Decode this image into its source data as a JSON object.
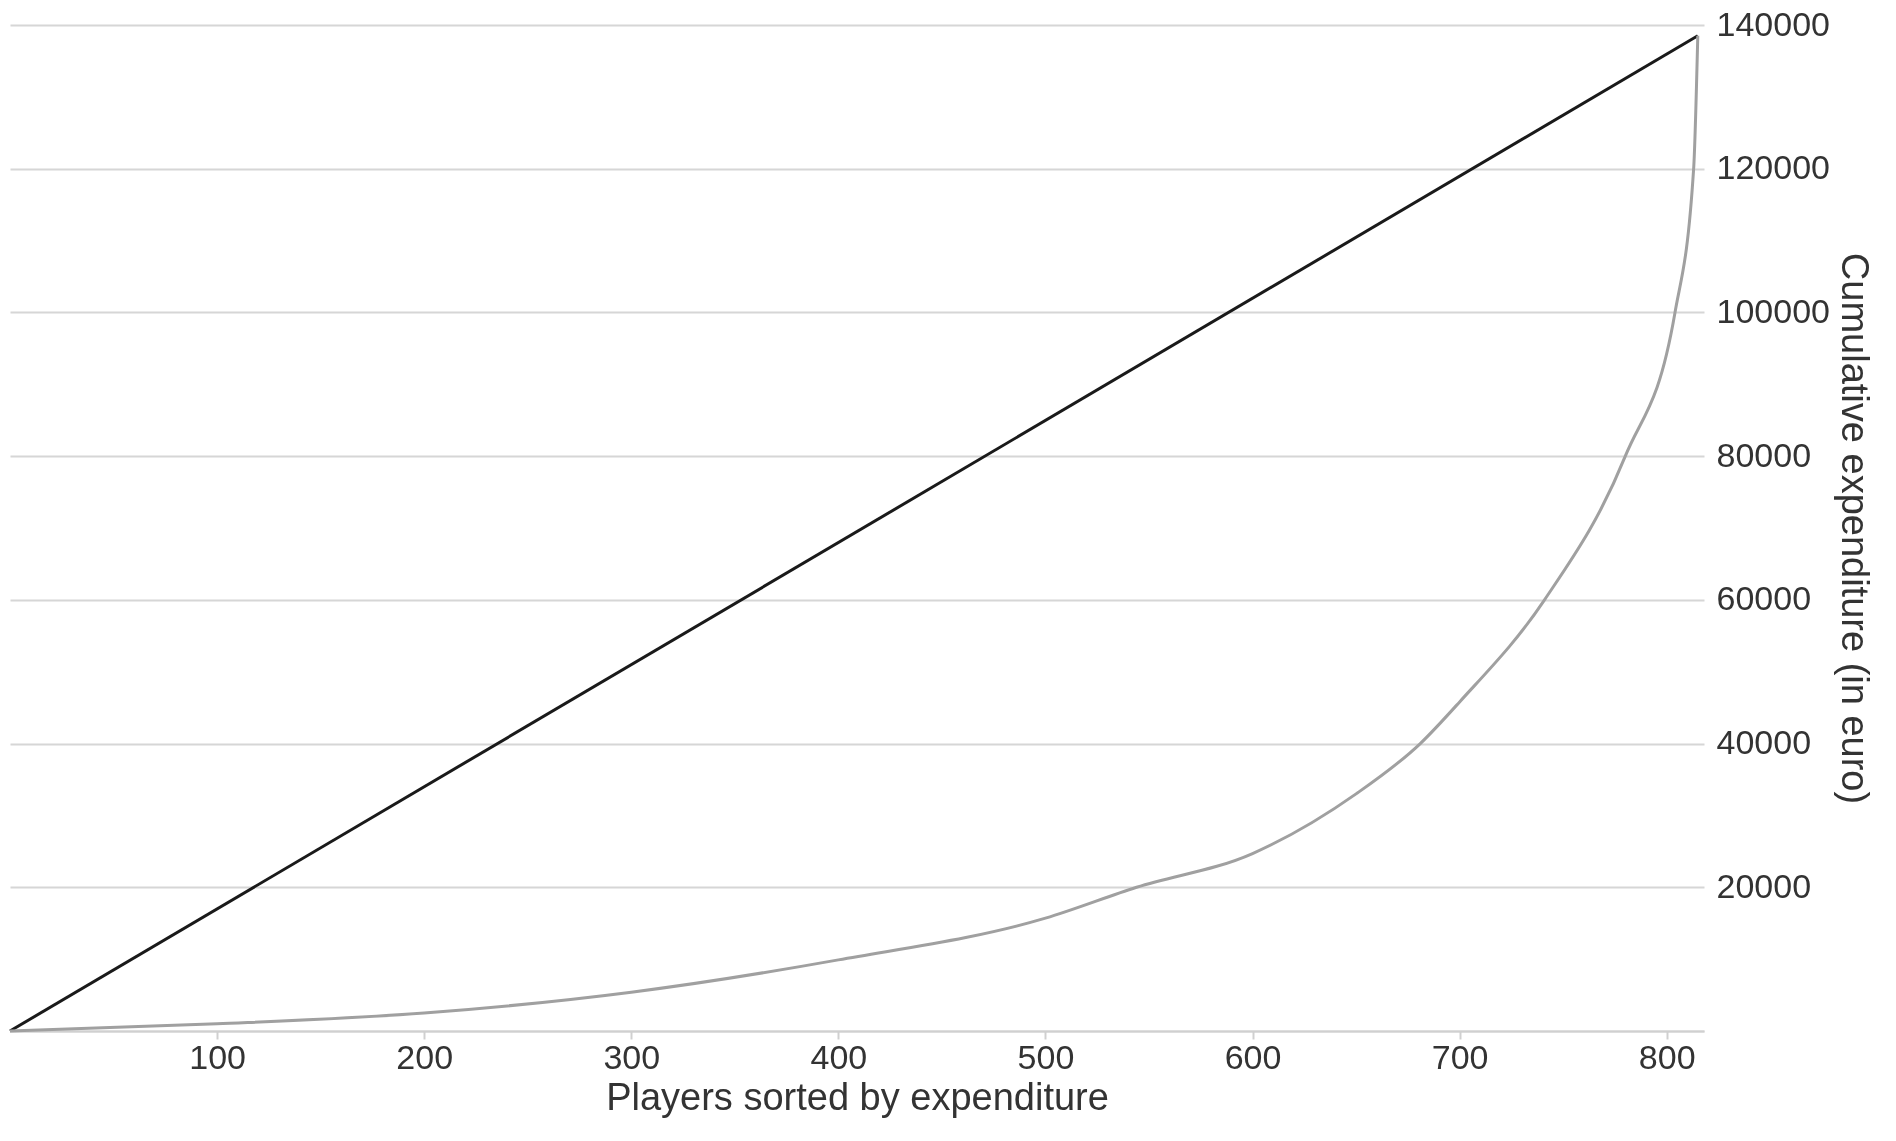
{
  "chart_data": {
    "type": "line",
    "xlabel": "Players sorted by expenditure",
    "ylabel": "Cumulative expenditure (in euro)",
    "xlim": [
      0,
      818
    ],
    "xticks": [
      100,
      200,
      300,
      400,
      500,
      600,
      700,
      800
    ],
    "ylim": [
      0,
      140000
    ],
    "yticks": [
      {
        "value": 0,
        "label": null
      },
      20000,
      40000,
      60000,
      80000,
      100000,
      120000,
      140000
    ],
    "grid": "y",
    "marker": "none",
    "line_style": "solid",
    "series": [
      {
        "color": "#1a1a1a",
        "x": [
          0,
          815
        ],
        "values": [
          0,
          138500
        ]
      },
      {
        "color": "#a0a0a0",
        "x": [
          0,
          100,
          200,
          300,
          400,
          500,
          544,
          600,
          650,
          681,
          700,
          741,
          780,
          804,
          813,
          815
        ],
        "values": [
          0,
          1000,
          2500,
          5400,
          9900,
          15700,
          20000,
          24700,
          33000,
          40000,
          45800,
          60000,
          80000,
          100000,
          120000,
          138500
        ]
      }
    ]
  }
}
